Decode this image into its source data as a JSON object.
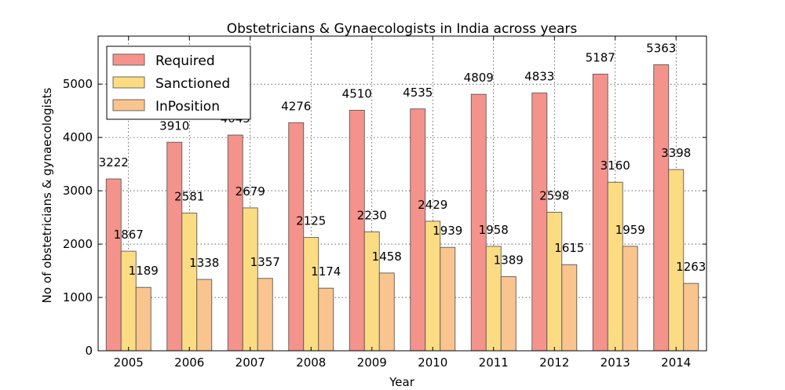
{
  "chart_data": {
    "type": "bar",
    "title": "Obstetricians & Gynaecologists in India across years",
    "xlabel": "Year",
    "ylabel": "No of obstetricians & gynaecologists",
    "categories": [
      "2005",
      "2006",
      "2007",
      "2008",
      "2009",
      "2010",
      "2011",
      "2012",
      "2013",
      "2014"
    ],
    "series": [
      {
        "name": "Required",
        "color": "#f4938b",
        "values": [
          3222,
          3910,
          4045,
          4276,
          4510,
          4535,
          4809,
          4833,
          5187,
          5363
        ]
      },
      {
        "name": "Sanctioned",
        "color": "#fcdc82",
        "values": [
          1867,
          2581,
          2679,
          2125,
          2230,
          2429,
          1958,
          2598,
          3160,
          3398
        ]
      },
      {
        "name": "InPosition",
        "color": "#f9c48e",
        "values": [
          1189,
          1338,
          1357,
          1174,
          1458,
          1939,
          1389,
          1615,
          1959,
          1263
        ]
      }
    ],
    "yticks": [
      0,
      1000,
      2000,
      3000,
      4000,
      5000
    ],
    "ylim": [
      0,
      5900
    ],
    "grid": true,
    "legend_position": "top-left"
  }
}
